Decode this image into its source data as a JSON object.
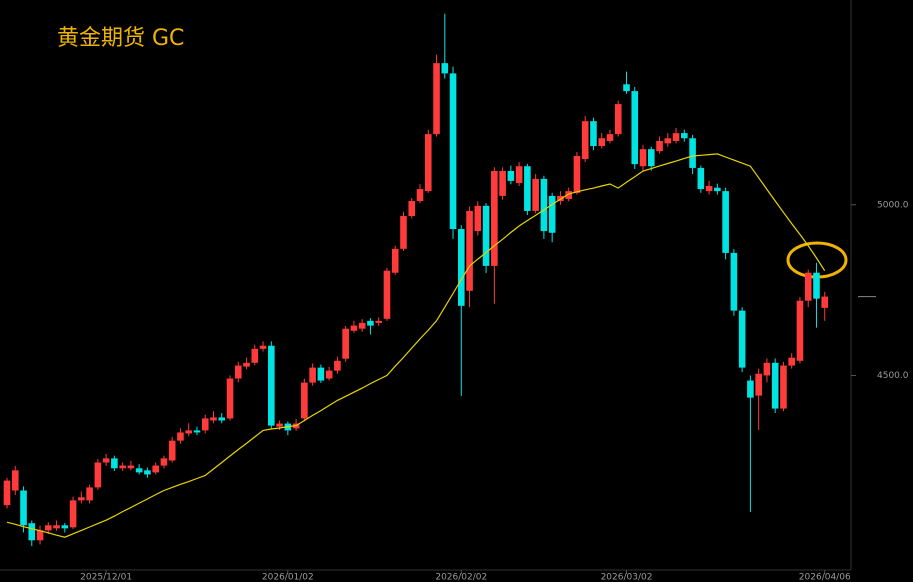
{
  "chart_data": {
    "type": "candlestick",
    "title": "黄金期货 GC",
    "categories": [
      null,
      null,
      null,
      null,
      null,
      null,
      null,
      null,
      null,
      null,
      null,
      null,
      "2025/12/01",
      null,
      null,
      null,
      null,
      null,
      null,
      null,
      null,
      null,
      null,
      null,
      null,
      null,
      null,
      null,
      null,
      null,
      null,
      null,
      null,
      null,
      "2026/01/02",
      null,
      null,
      null,
      null,
      null,
      null,
      null,
      null,
      null,
      null,
      null,
      null,
      null,
      null,
      null,
      null,
      null,
      null,
      null,
      null,
      "2026/02/02",
      null,
      null,
      null,
      null,
      null,
      null,
      null,
      null,
      null,
      null,
      null,
      null,
      null,
      null,
      null,
      null,
      null,
      null,
      null,
      "2026/03/02",
      null,
      null,
      null,
      null,
      null,
      null,
      null,
      null,
      null,
      null,
      null,
      null,
      null,
      null,
      null,
      null,
      null,
      null,
      null,
      null,
      null,
      null,
      null,
      "2026/04/06"
    ],
    "open": [
      4120,
      4163,
      4163,
      4067,
      4017,
      4046,
      4052,
      4061,
      4055,
      4134,
      4134,
      4172,
      4245,
      4257,
      4228,
      4228,
      4228,
      4222,
      4216,
      4236,
      4251,
      4309,
      4330,
      4339,
      4339,
      4368,
      4377,
      4374,
      4491,
      4526,
      4537,
      4578,
      4587,
      4350,
      4359,
      4345,
      4374,
      4479,
      4523,
      4491,
      4514,
      4549,
      4631,
      4637,
      4660,
      4654,
      4666,
      4801,
      4871,
      4967,
      5011,
      5040,
      5207,
      5415,
      5385,
      4929,
      4748,
      4923,
      4997,
      4821,
      5026,
      5099,
      5064,
      5113,
      4982,
      5076,
      5026,
      5011,
      5017,
      5035,
      5134,
      5245,
      5172,
      5187,
      5207,
      5353,
      5333,
      5113,
      5163,
      5157,
      5180,
      5187,
      5210,
      5195,
      5108,
      5040,
      5050,
      5040,
      4859,
      4690,
      4485,
      4441,
      4500,
      4537,
      4403,
      4529,
      4543,
      4719,
      4801,
      4698
    ],
    "high": [
      4200,
      4235,
      4175,
      4075,
      4060,
      4070,
      4075,
      4068,
      4145,
      4160,
      4180,
      4255,
      4270,
      4265,
      4245,
      4250,
      4240,
      4230,
      4245,
      4265,
      4320,
      4345,
      4360,
      4350,
      4385,
      4395,
      4390,
      4500,
      4540,
      4552,
      4590,
      4600,
      4600,
      4368,
      4365,
      4372,
      4490,
      4535,
      4532,
      4525,
      4555,
      4645,
      4660,
      4665,
      4668,
      4670,
      4815,
      4880,
      4980,
      5020,
      5060,
      5220,
      5440,
      5560,
      5405,
      4940,
      4995,
      5010,
      5005,
      5110,
      5110,
      5115,
      5125,
      5120,
      5090,
      5085,
      5035,
      5040,
      5050,
      5155,
      5260,
      5255,
      5210,
      5220,
      5305,
      5390,
      5345,
      5175,
      5170,
      5200,
      5210,
      5225,
      5220,
      5205,
      5115,
      5070,
      5062,
      5050,
      4870,
      4700,
      4500,
      4520,
      4550,
      4550,
      4540,
      4565,
      4730,
      4810,
      4830,
      4745
    ],
    "low": [
      4110,
      4150,
      4040,
      4000,
      4005,
      4035,
      4045,
      4040,
      4050,
      4125,
      4125,
      4165,
      4235,
      4220,
      4220,
      4222,
      4210,
      4200,
      4210,
      4228,
      4245,
      4300,
      4322,
      4325,
      4330,
      4360,
      4360,
      4368,
      4480,
      4518,
      4530,
      4570,
      4345,
      4340,
      4325,
      4338,
      4365,
      4470,
      4478,
      4485,
      4505,
      4540,
      4625,
      4628,
      4620,
      4645,
      4660,
      4795,
      4865,
      4960,
      5005,
      5035,
      5200,
      5370,
      4900,
      4440,
      4700,
      4910,
      4800,
      4710,
      5015,
      5060,
      5055,
      4970,
      4975,
      4900,
      4890,
      5000,
      5010,
      5030,
      5125,
      5160,
      5165,
      5180,
      5200,
      5325,
      5105,
      5100,
      5100,
      5150,
      5170,
      5180,
      5185,
      5090,
      5035,
      5030,
      5030,
      4840,
      4675,
      4510,
      4100,
      4340,
      4480,
      4390,
      4395,
      4520,
      4535,
      4700,
      4640,
      4660
    ],
    "close": [
      4192,
      4222,
      4061,
      4017,
      4046,
      4061,
      4061,
      4052,
      4134,
      4143,
      4172,
      4245,
      4257,
      4228,
      4236,
      4236,
      4216,
      4210,
      4236,
      4257,
      4309,
      4333,
      4339,
      4333,
      4374,
      4377,
      4368,
      4491,
      4529,
      4537,
      4578,
      4587,
      4353,
      4359,
      4339,
      4359,
      4479,
      4523,
      4485,
      4514,
      4543,
      4637,
      4646,
      4654,
      4646,
      4660,
      4807,
      4871,
      4967,
      5011,
      5046,
      5207,
      5415,
      5385,
      4929,
      4704,
      4982,
      4997,
      4821,
      5099,
      5099,
      5070,
      5113,
      4982,
      5076,
      4923,
      4918,
      5026,
      5040,
      5143,
      5245,
      5172,
      5195,
      5207,
      5295,
      5333,
      5119,
      5163,
      5113,
      5187,
      5195,
      5210,
      5195,
      5108,
      5046,
      5055,
      5040,
      4859,
      4690,
      4523,
      4435,
      4505,
      4537,
      4403,
      4529,
      4552,
      4719,
      4801,
      4725,
      4731
    ],
    "up_color": "#ff3b3b",
    "down_color": "#00e3e3",
    "ma": {
      "color": "#e8d400",
      "values": [
        4070,
        4064,
        4057,
        4051,
        4045,
        4039,
        4032,
        4026,
        4036,
        4046,
        4056,
        4066,
        4076,
        4088,
        4101,
        4113,
        4126,
        4138,
        4151,
        4163,
        4172,
        4181,
        4189,
        4198,
        4207,
        4226,
        4245,
        4264,
        4283,
        4301,
        4320,
        4339,
        4343,
        4346,
        4350,
        4353,
        4368,
        4383,
        4397,
        4412,
        4427,
        4439,
        4451,
        4463,
        4476,
        4488,
        4500,
        4527,
        4553,
        4580,
        4607,
        4633,
        4660,
        4700,
        4740,
        4781,
        4821,
        4841,
        4860,
        4880,
        4899,
        4919,
        4938,
        4954,
        4969,
        4985,
        5001,
        5016,
        5032,
        5038,
        5044,
        5049,
        5055,
        5061,
        5049,
        5066,
        5082,
        5099,
        5106,
        5114,
        5121,
        5128,
        5136,
        5143,
        5145,
        5147,
        5149,
        5140,
        5131,
        5122,
        5113,
        5079,
        5045,
        5011,
        4978,
        4945,
        4913,
        4880,
        4844,
        4807
      ]
    },
    "ylim": [
      3930,
      5600
    ],
    "yticks": [
      {
        "value": 5000,
        "label": "5000.0"
      },
      {
        "value": 4500,
        "label": "4500.0"
      }
    ],
    "grid": false
  }
}
